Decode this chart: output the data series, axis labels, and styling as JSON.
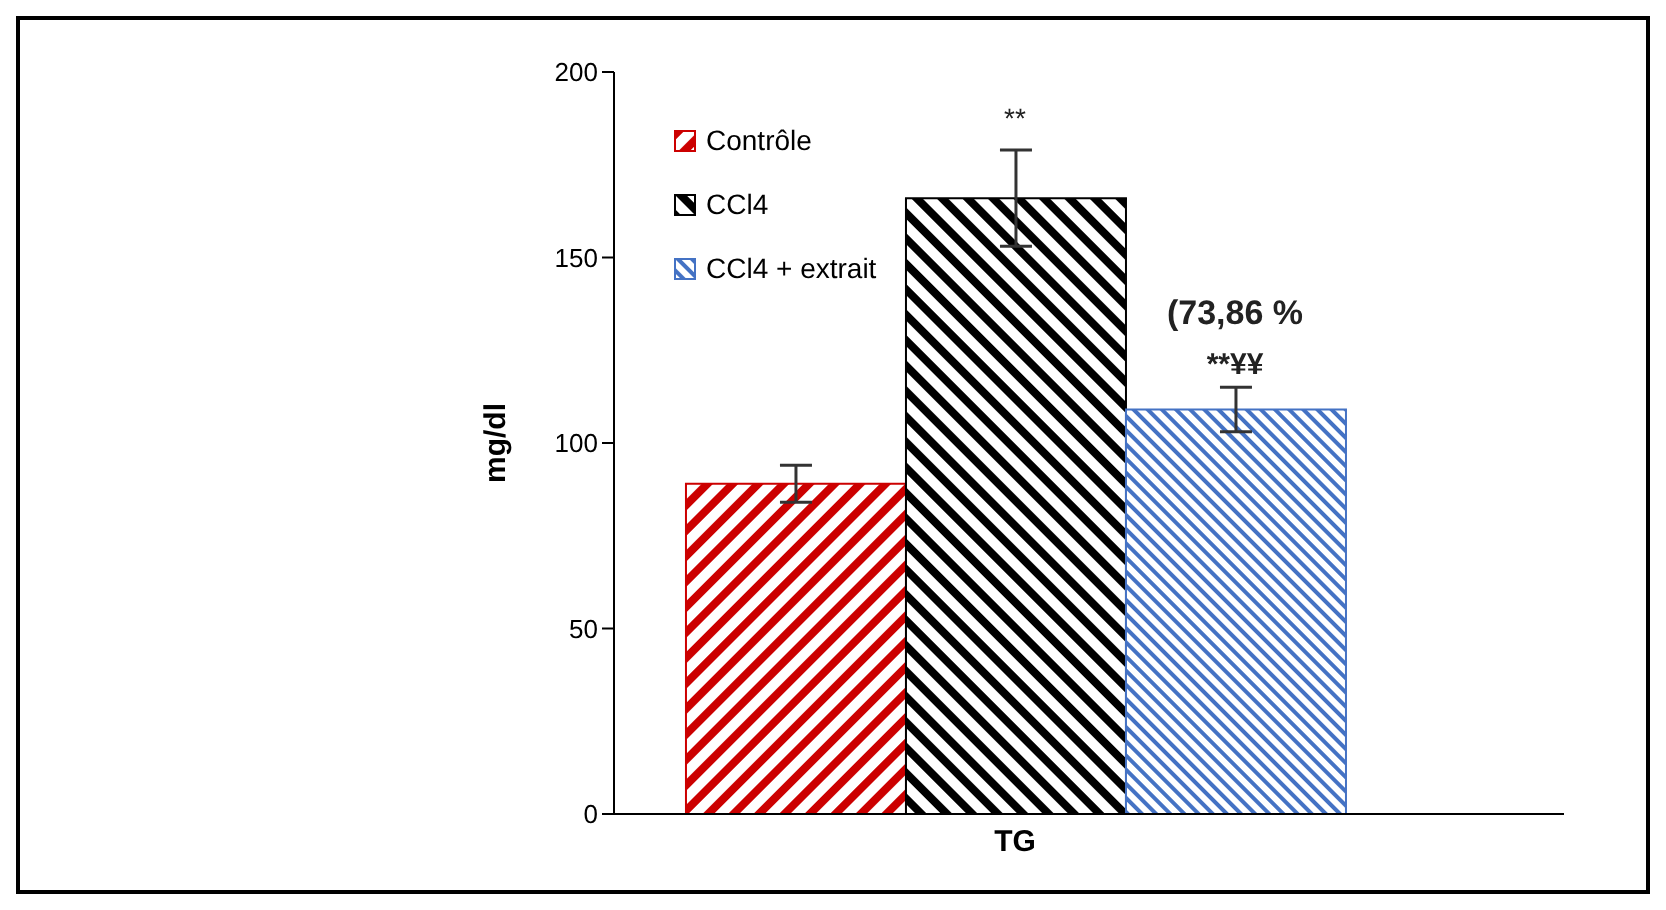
{
  "chart_data": {
    "type": "bar",
    "categories": [
      "TG"
    ],
    "ylabel": "mg/dl",
    "series": [
      {
        "name": "Contrôle",
        "color": "#cc0000",
        "values": [
          89
        ],
        "errors": [
          5
        ]
      },
      {
        "name": "CCl4",
        "color": "#000000",
        "values": [
          166
        ],
        "errors": [
          13
        ]
      },
      {
        "name": "CCl4  + extrait",
        "color": "#4472c4",
        "values": [
          109
        ],
        "errors": [
          6
        ]
      }
    ],
    "annotations": [
      "**",
      "(73,86 %",
      "**¥¥"
    ],
    "ylim": [
      0,
      200
    ],
    "yticks": [
      0,
      50,
      100,
      150,
      200
    ],
    "grid": false,
    "legend": "top left"
  }
}
